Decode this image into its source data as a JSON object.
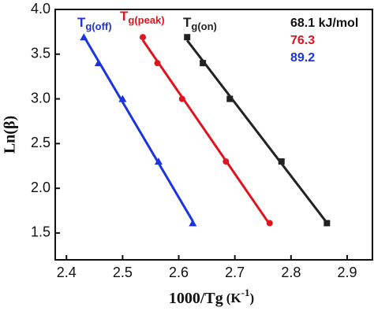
{
  "chart_data": {
    "type": "scatter",
    "xlabel": "1000/Tg",
    "xlabel_unit": "(K",
    "xlabel_sup": "-1",
    "xlabel_close": ")",
    "ylabel": "Ln(β)",
    "xlim": [
      2.38,
      2.945
    ],
    "xticks": [
      2.4,
      2.5,
      2.6,
      2.7,
      2.8,
      2.9
    ],
    "ylim": [
      1.2,
      4.0
    ],
    "yticks": [
      1.5,
      {
        "value": 2,
        "label": "2.0"
      },
      2.5,
      {
        "value": 3,
        "label": "3.0"
      },
      3.5,
      {
        "value": 4,
        "label": "4.0"
      }
    ],
    "series": [
      {
        "name": "T",
        "subscript": "g(off)",
        "color": "#1c33e0",
        "marker": "triangle",
        "x": [
          2.431,
          2.457,
          2.5,
          2.564,
          2.625
        ],
        "values": [
          3.69,
          3.4,
          3.0,
          2.3,
          1.61
        ]
      },
      {
        "name": "T",
        "subscript": "g(peak)",
        "color": "#e0141e",
        "marker": "circle",
        "x": [
          2.536,
          2.562,
          2.606,
          2.684,
          2.762
        ],
        "values": [
          3.69,
          3.4,
          3.0,
          2.3,
          1.61
        ]
      },
      {
        "name": "T",
        "subscript": "g(on)",
        "color": "#222222",
        "marker": "square",
        "x": [
          2.615,
          2.643,
          2.691,
          2.783,
          2.864
        ],
        "values": [
          3.69,
          3.4,
          3.0,
          2.3,
          1.61
        ]
      }
    ],
    "annotations": [
      {
        "text": "68.1 kJ/mol",
        "color": "#111111"
      },
      {
        "text": "76.3",
        "color": "#e0141e"
      },
      {
        "text": "89.2",
        "color": "#1c33e0"
      }
    ]
  }
}
